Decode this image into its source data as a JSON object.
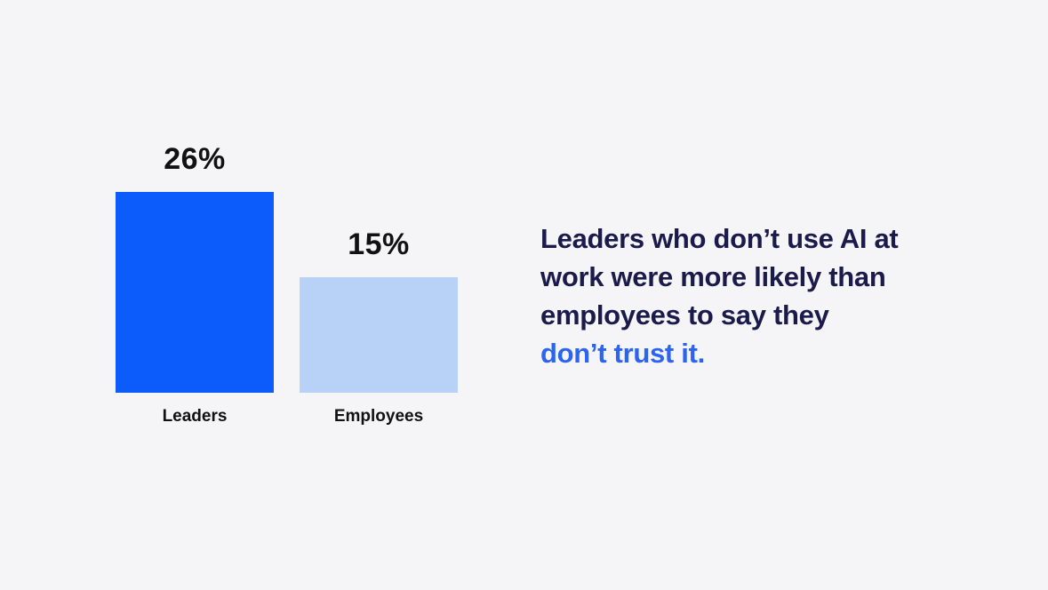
{
  "page": {
    "background_color": "#F5F5F8"
  },
  "chart_data": {
    "type": "bar",
    "categories": [
      "Leaders",
      "Employees"
    ],
    "values": [
      26,
      15
    ],
    "value_labels": [
      "26%",
      "15%"
    ],
    "unit": "%",
    "bar_colors": [
      "#0B5CFB",
      "#B7D1F7"
    ],
    "value_label_color": "#111111",
    "category_label_color": "#111111",
    "title": "",
    "xlabel": "",
    "ylabel": "",
    "ylim": [
      0,
      26
    ],
    "grid": false,
    "legend": false
  },
  "caption": {
    "lines": [
      "Leaders who don’t use AI at",
      "work were more likely than",
      "employees to say they"
    ],
    "highlight": "don’t trust it.",
    "text_color": "#1A1A4B",
    "highlight_color": "#2C63F1"
  }
}
